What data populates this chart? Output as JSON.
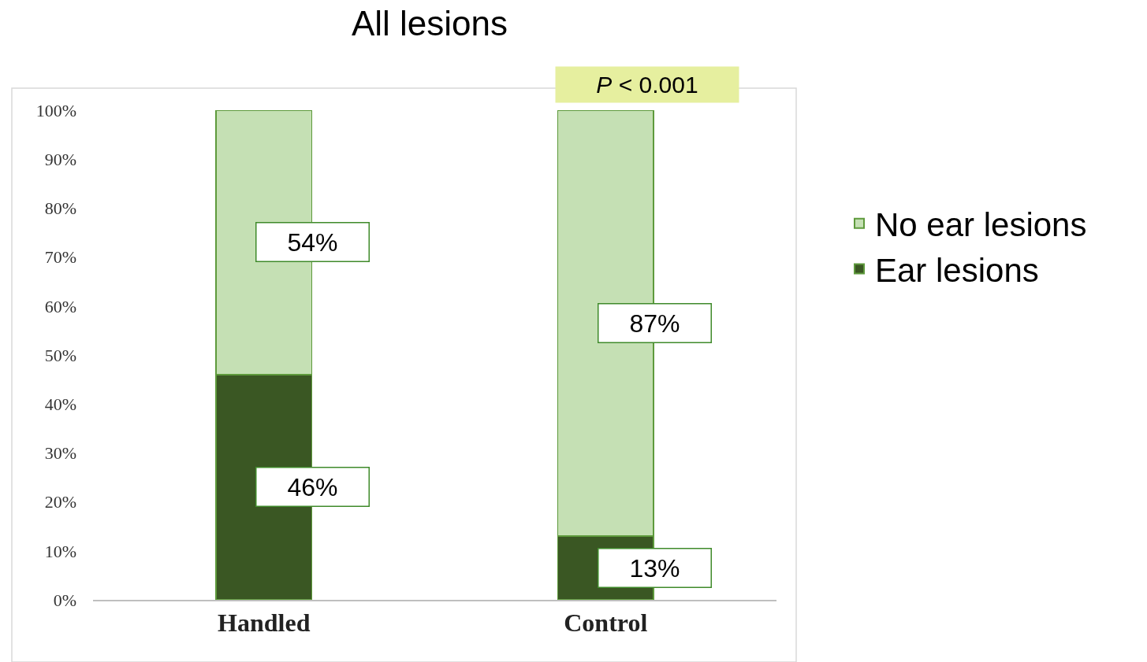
{
  "chart_data": {
    "type": "bar",
    "title": "All lesions",
    "stacked": true,
    "categories": [
      "Handled",
      "Control"
    ],
    "series": [
      {
        "name": "Ear lesions",
        "color": "#3a5723",
        "values": [
          46,
          13
        ],
        "value_labels": [
          "46%",
          "13%"
        ]
      },
      {
        "name": "No ear lesions",
        "color": "#c5e0b4",
        "values": [
          54,
          87
        ],
        "value_labels": [
          "54%",
          "87%"
        ]
      }
    ],
    "ylim": [
      0,
      100
    ],
    "yticks": [
      {
        "value": 0,
        "label": "0%"
      },
      {
        "value": 10,
        "label": "10%"
      },
      {
        "value": 20,
        "label": "20%"
      },
      {
        "value": 30,
        "label": "30%"
      },
      {
        "value": 40,
        "label": "40%"
      },
      {
        "value": 50,
        "label": "50%"
      },
      {
        "value": 60,
        "label": "60%"
      },
      {
        "value": 70,
        "label": "70%"
      },
      {
        "value": 80,
        "label": "80%"
      },
      {
        "value": 90,
        "label": "90%"
      },
      {
        "value": 100,
        "label": "100%"
      }
    ],
    "grid": false,
    "legend": "right",
    "annotations": [
      "P < 0.001"
    ]
  }
}
